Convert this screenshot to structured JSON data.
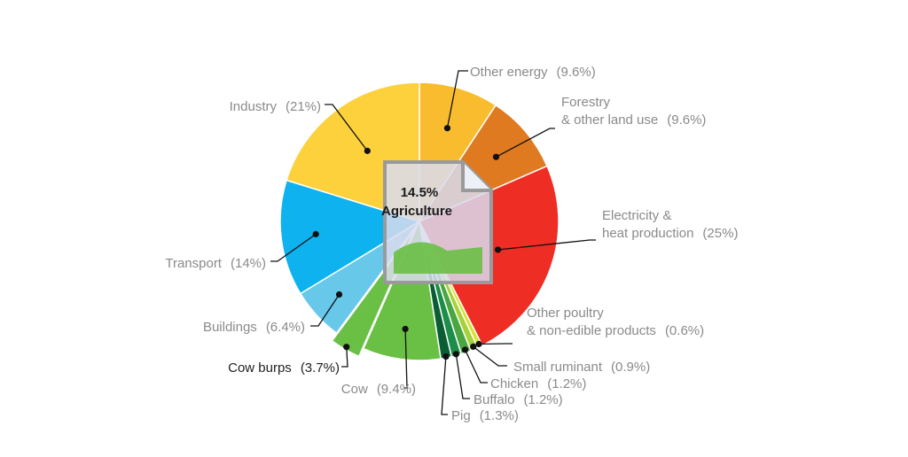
{
  "chart_data": {
    "type": "pie",
    "title": "",
    "center_label": {
      "value": "14.5%",
      "name": "Agriculture"
    },
    "slices": [
      {
        "name": "Other energy",
        "pct_label": "(9.6%)",
        "value": 9.6,
        "color": "#f9bc2e"
      },
      {
        "name": "Forestry & other land use",
        "lines": [
          "Forestry",
          "& other land use"
        ],
        "pct_label": "(9.6%)",
        "value": 9.6,
        "color": "#df7a20"
      },
      {
        "name": "Electricity & heat production",
        "lines": [
          "Electricity &",
          "heat production"
        ],
        "pct_label": "(25%)",
        "value": 25,
        "color": "#ee2d24"
      },
      {
        "name": "Other poultry & non-edible products",
        "lines": [
          "Other poultry",
          "& non-edible products"
        ],
        "pct_label": "(0.6%)",
        "value": 0.6,
        "color": "#d7e232"
      },
      {
        "name": "Small ruminant",
        "pct_label": "(0.9%)",
        "value": 0.9,
        "color": "#a6d13a"
      },
      {
        "name": "Chicken",
        "pct_label": "(1.2%)",
        "value": 1.2,
        "color": "#4aa640"
      },
      {
        "name": "Buffalo",
        "pct_label": "(1.2%)",
        "value": 1.2,
        "color": "#1c8e4a"
      },
      {
        "name": "Pig",
        "pct_label": "(1.3%)",
        "value": 1.3,
        "color": "#0b5e33"
      },
      {
        "name": "Cow",
        "pct_label": "(9.4%)",
        "value": 9.4,
        "color": "#6abf45"
      },
      {
        "name": "Cow burps",
        "pct_label": "(3.7%)",
        "value": 3.7,
        "color": "#6abf45",
        "exploded": true,
        "dark_label": true
      },
      {
        "name": "Buildings",
        "pct_label": "(6.4%)",
        "value": 6.4,
        "color": "#67c8ea"
      },
      {
        "name": "Transport",
        "pct_label": "(14%)",
        "value": 14,
        "color": "#0db2ee"
      },
      {
        "name": "Industry",
        "pct_label": "(21%)",
        "value": 21,
        "color": "#fdd13c"
      }
    ]
  }
}
